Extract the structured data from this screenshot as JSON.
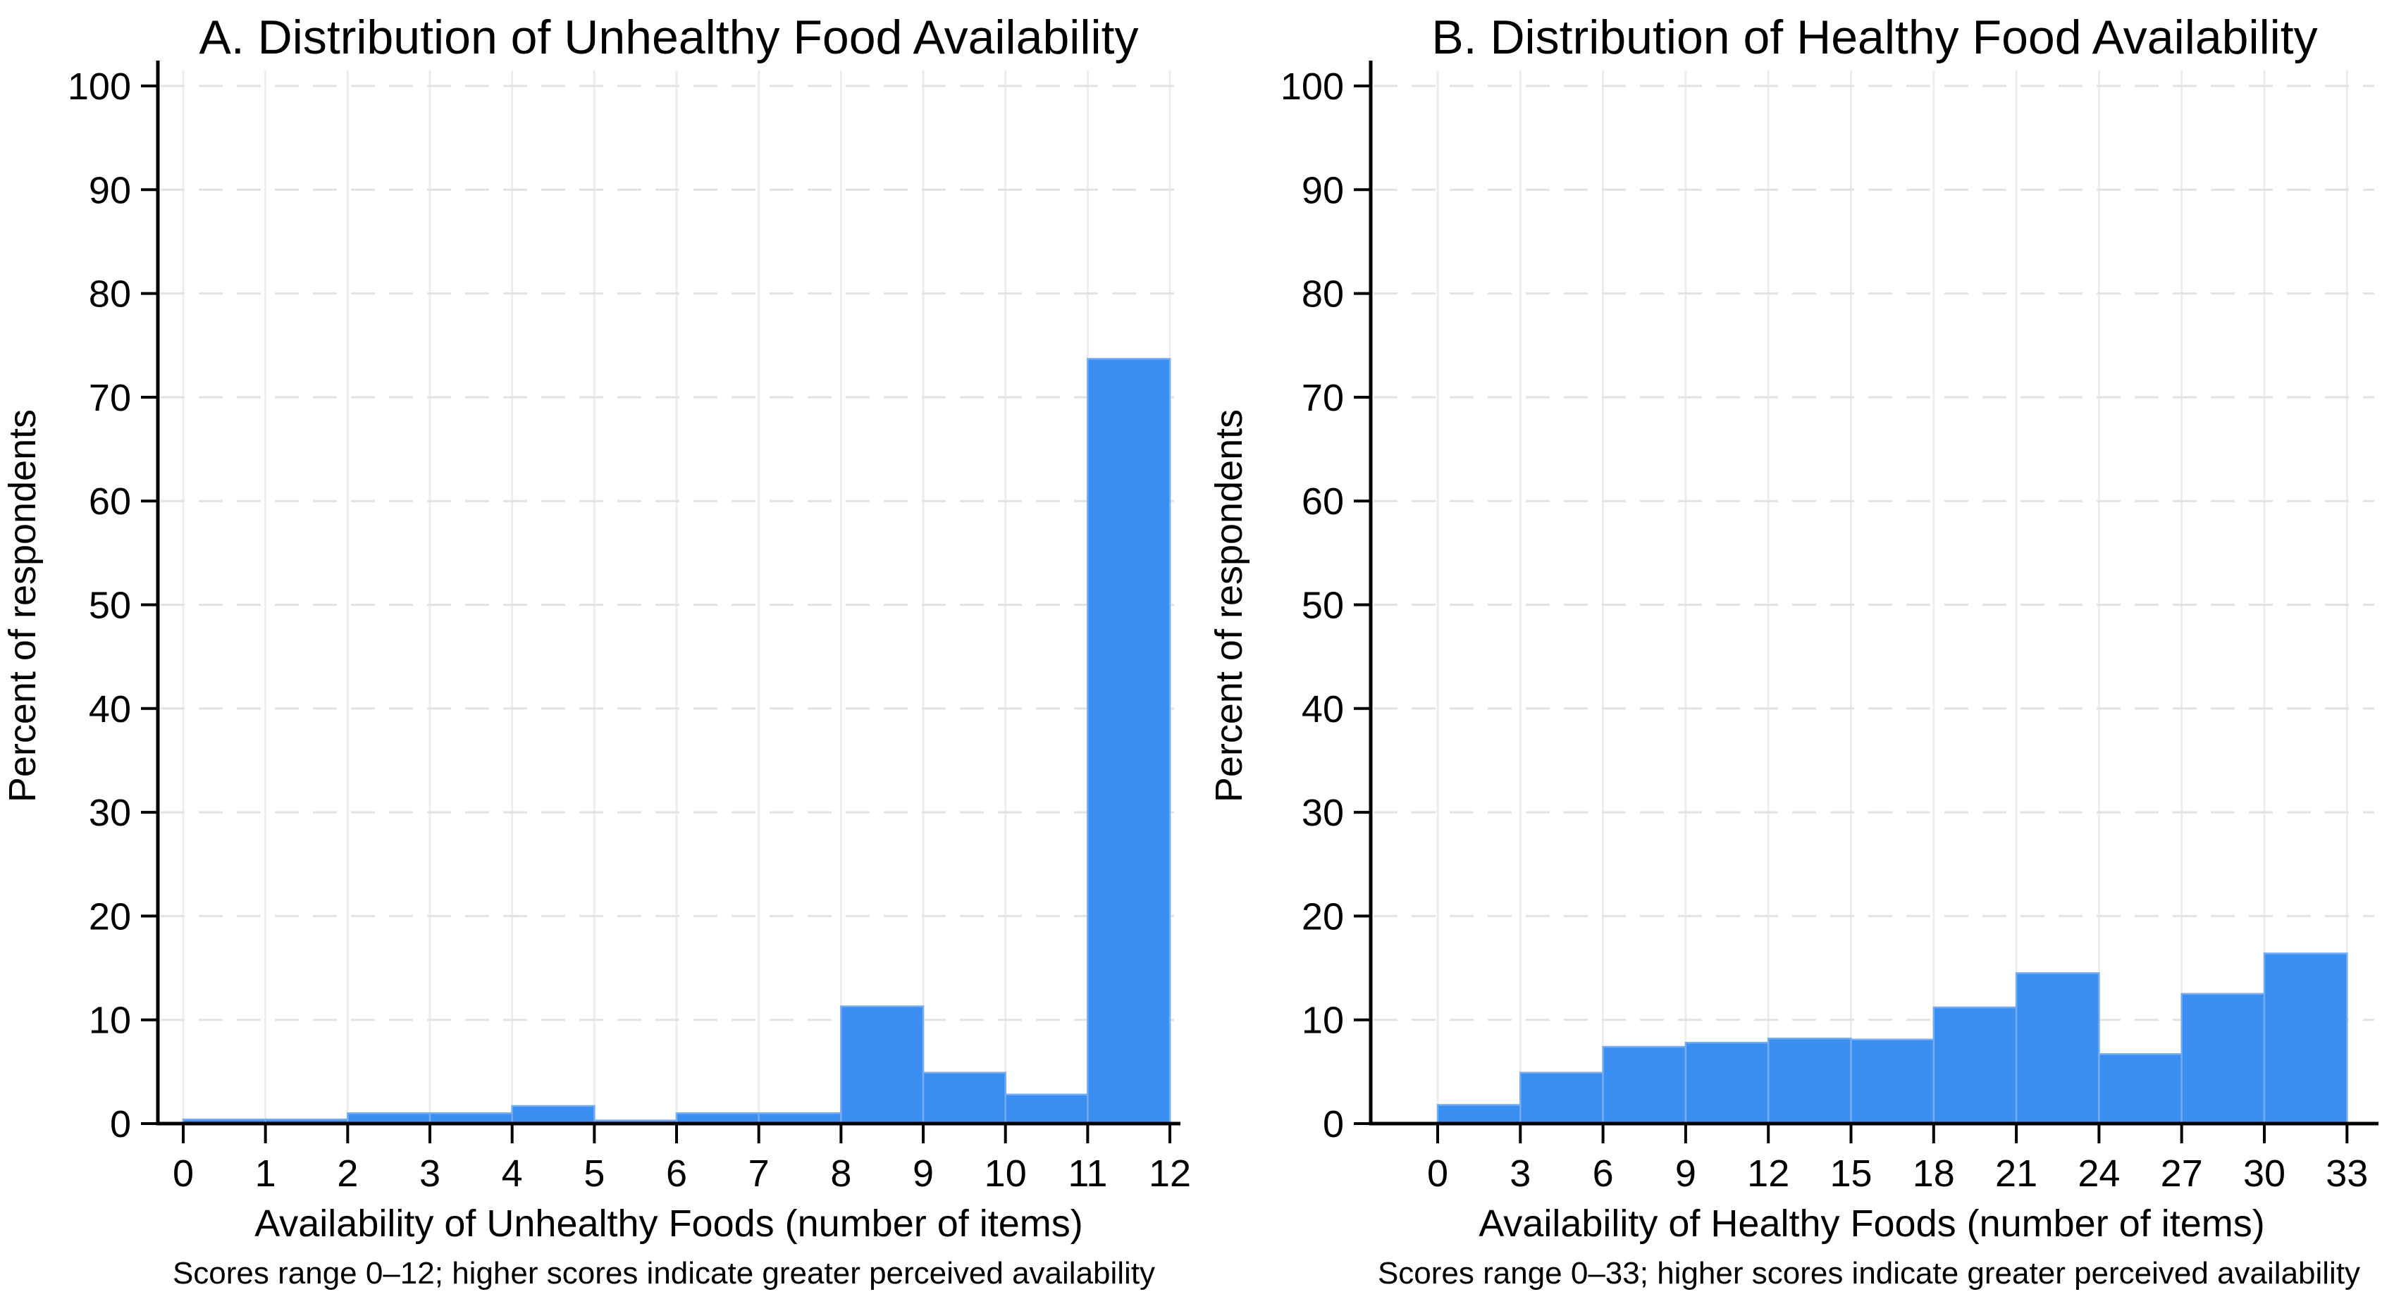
{
  "colors": {
    "background": "#FFFFFF",
    "bar_fill": "#3A8EF2",
    "bar_edge": "#74ABF5",
    "grid_vertical": "#EDEDED",
    "grid_horizontal": "#E2E2E2",
    "axis": "#000000",
    "text": "#000000"
  },
  "chart_data": [
    {
      "type": "bar",
      "panel": "A",
      "title": "A. Distribution of Unhealthy Food Availability",
      "xlabel": "Availability of Unhealthy Foods (number of items)",
      "ylabel": "Percent of respondents",
      "footnote": "Scores range 0–12; higher scores indicate greater perceived availability",
      "xlim": [
        0,
        12
      ],
      "ylim": [
        0,
        100
      ],
      "grid": true,
      "legend": "none",
      "y_ticks": [
        0,
        10,
        20,
        30,
        40,
        50,
        60,
        70,
        80,
        90,
        100
      ],
      "x_ticks": [
        0,
        1,
        2,
        3,
        4,
        5,
        6,
        7,
        8,
        9,
        10,
        11,
        12
      ],
      "bin_width": 1,
      "bin_starts": [
        0,
        1,
        2,
        3,
        4,
        5,
        6,
        7,
        8,
        9,
        10,
        11
      ],
      "values": [
        0.4,
        0.4,
        1.0,
        1.0,
        1.7,
        0.3,
        1.0,
        1.0,
        11.3,
        4.9,
        2.8,
        73.7
      ]
    },
    {
      "type": "bar",
      "panel": "B",
      "title": "B. Distribution of Healthy Food Availability",
      "xlabel": "Availability of Healthy Foods (number of items)",
      "ylabel": "Percent of respondents",
      "footnote": "Scores range 0–33; higher scores indicate greater perceived availability",
      "xlim": [
        0,
        33
      ],
      "ylim": [
        0,
        100
      ],
      "grid": true,
      "legend": "none",
      "y_ticks": [
        0,
        10,
        20,
        30,
        40,
        50,
        60,
        70,
        80,
        90,
        100
      ],
      "x_ticks": [
        0,
        3,
        6,
        9,
        12,
        15,
        18,
        21,
        24,
        27,
        30,
        33
      ],
      "bin_width": 3,
      "bin_starts": [
        0,
        3,
        6,
        9,
        12,
        15,
        18,
        21,
        24,
        27,
        30
      ],
      "values": [
        1.8,
        4.9,
        7.4,
        7.8,
        8.2,
        8.1,
        11.2,
        14.5,
        6.7,
        12.5,
        16.4
      ]
    }
  ]
}
